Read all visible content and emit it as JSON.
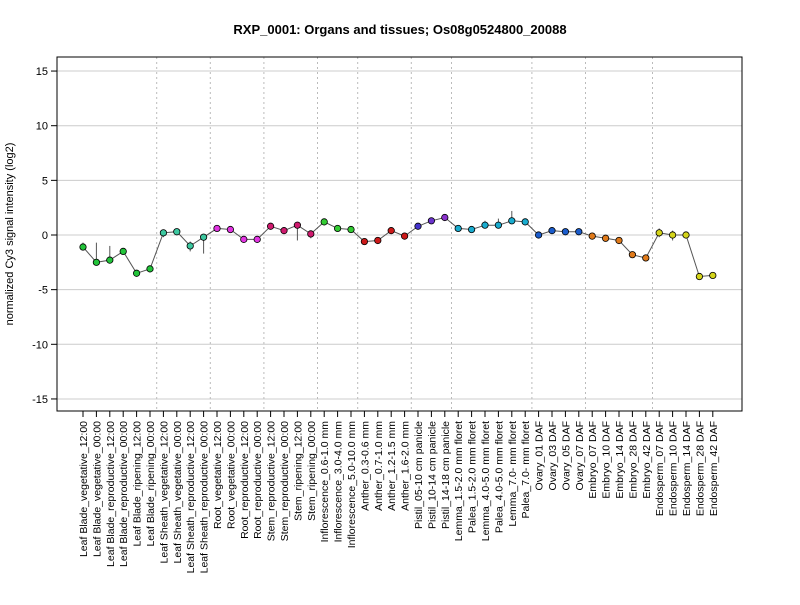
{
  "chart_data": {
    "type": "line",
    "title": "RXP_0001: Organs and tissues; Os08g0524800_20088",
    "ylabel": "normalized Cy3 signal intensity (log2)",
    "xlabel": "",
    "ylim": [
      -16,
      16
    ],
    "yticks": [
      -15,
      -10,
      -5,
      0,
      5,
      10,
      15
    ],
    "grid": true,
    "line_color": "#555555",
    "categories": [
      "Leaf Blade_vegetative_12:00",
      "Leaf Blade_vegetative_00:00",
      "Leaf Blade_reproductive_12:00",
      "Leaf Blade_reproductive_00:00",
      "Leaf Blade_ripening_12:00",
      "Leaf Blade_ripening_00:00",
      "Leaf Sheath_vegetative_12:00",
      "Leaf Sheath_vegetative_00:00",
      "Leaf Sheath_reproductive_12:00",
      "Leaf Sheath_reproductive_00:00",
      "Root_vegetative_12:00",
      "Root_vegetative_00:00",
      "Root_reproductive_12:00",
      "Root_reproductive_00:00",
      "Stem_reproductive_12:00",
      "Stem_reproductive_00:00",
      "Stem_ripening_12:00",
      "Stem_ripening_00:00",
      "Inflorescence_0.6-1.0 mm",
      "Inflorescence_3.0-4.0 mm",
      "Inflorescence_5.0-10.0 mm",
      "Anther_0.3-0.6 mm",
      "Anther_0.7-1.0 mm",
      "Anther_1.2-1.5 mm",
      "Anther_1.6-2.0 mm",
      "Pistil_05-10 cm panicle",
      "Pistil_10-14 cm panicle",
      "Pistil_14-18 cm panicle",
      "Lemma_1.5-2.0 mm floret",
      "Palea_1.5-2.0 mm floret",
      "Lemma_4.0-5.0 mm floret",
      "Palea_4.0-5.0 mm floret",
      "Lemma_7.0- mm floret",
      "Palea_7.0- mm floret",
      "Ovary_01 DAF",
      "Ovary_03 DAF",
      "Ovary_05 DAF",
      "Ovary_07 DAF",
      "Embryo_07 DAF",
      "Embryo_10 DAF",
      "Embryo_14 DAF",
      "Embryo_28 DAF",
      "Embryo_42 DAF",
      "Endosperm_07 DAF",
      "Endosperm_10 DAF",
      "Endosperm_14 DAF",
      "Endosperm_28 DAF",
      "Endosperm_42 DAF"
    ],
    "values": [
      -1.1,
      -2.5,
      -2.3,
      -1.5,
      -3.5,
      -3.1,
      0.2,
      0.3,
      -1.0,
      -0.2,
      0.6,
      0.5,
      -0.4,
      -0.4,
      0.8,
      0.4,
      0.9,
      0.1,
      1.2,
      0.6,
      0.5,
      -0.6,
      -0.5,
      0.4,
      -0.1,
      0.8,
      1.3,
      1.6,
      0.6,
      0.5,
      0.9,
      0.9,
      1.3,
      1.2,
      0.0,
      0.4,
      0.3,
      0.3,
      -0.1,
      -0.3,
      -0.5,
      -1.8,
      -2.1,
      0.2,
      0.0,
      0.0,
      -3.8,
      -3.7
    ],
    "error_low": [
      -1.4,
      -2.6,
      -2.5,
      -1.7,
      -3.6,
      -3.2,
      -0.2,
      0.1,
      -1.5,
      -1.7,
      0.4,
      0.3,
      -0.5,
      -0.5,
      0.6,
      0.2,
      -0.5,
      -0.3,
      1.0,
      0.4,
      0.3,
      -0.7,
      -0.6,
      0.2,
      -0.3,
      0.6,
      1.1,
      1.3,
      0.4,
      0.3,
      0.6,
      0.6,
      1.0,
      1.0,
      -0.2,
      0.2,
      0.1,
      0.1,
      -0.3,
      -0.5,
      -0.7,
      -2.0,
      -2.3,
      -0.2,
      -0.5,
      -0.2,
      -4.1,
      -3.9
    ],
    "error_high": [
      -0.7,
      -0.7,
      -1.0,
      -1.2,
      -3.3,
      -2.9,
      0.4,
      0.5,
      -0.6,
      0.1,
      0.8,
      0.7,
      -0.2,
      -0.2,
      1.0,
      0.6,
      1.1,
      0.3,
      1.4,
      0.8,
      0.7,
      -0.4,
      -0.3,
      0.6,
      0.1,
      1.0,
      1.6,
      1.9,
      0.8,
      0.7,
      1.3,
      1.5,
      2.2,
      1.5,
      0.2,
      0.6,
      0.5,
      0.5,
      0.1,
      -0.1,
      -0.3,
      -1.6,
      -1.9,
      0.6,
      0.4,
      0.2,
      -3.5,
      -3.4
    ],
    "colors": [
      "#22c43a",
      "#22c43a",
      "#22c43a",
      "#22c43a",
      "#22c43a",
      "#22c43a",
      "#3dc8a0",
      "#3dc8a0",
      "#3dc8a0",
      "#3dc8a0",
      "#e234e2",
      "#e234e2",
      "#e234e2",
      "#e234e2",
      "#cf1a6e",
      "#cf1a6e",
      "#cf1a6e",
      "#cf1a6e",
      "#33cc33",
      "#33cc33",
      "#33cc33",
      "#cc1a1a",
      "#cc1a1a",
      "#cc1a1a",
      "#cc1a1a",
      "#4433cc",
      "#6b33cc",
      "#8a33cc",
      "#1aaccf",
      "#1aaccf",
      "#1aaccf",
      "#1aaccf",
      "#1aaccf",
      "#1aaccf",
      "#1a5ccc",
      "#1a5ccc",
      "#1a5ccc",
      "#1a5ccc",
      "#e07a1a",
      "#e07a1a",
      "#e07a1a",
      "#e07a1a",
      "#e07a1a",
      "#d4d41a",
      "#d4d41a",
      "#d4d41a",
      "#d4d41a",
      "#d4d41a"
    ],
    "group_separators_after": [
      5,
      9,
      13,
      17,
      20,
      24,
      27,
      33,
      37,
      42
    ]
  }
}
